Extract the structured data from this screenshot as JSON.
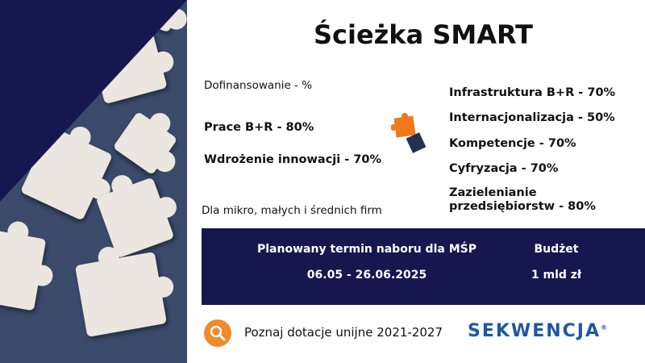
{
  "title": "Ścieżka SMART",
  "funding_label": "Dofinansowanie - %",
  "left_items": [
    "Prace B+R - 80%",
    "Wdrożenie innowacji - 70%"
  ],
  "right_items": [
    "Infrastruktura B+R - 70%",
    "Internacjonalizacja - 50%",
    "Kompetencje - 70%",
    "Cyfryzacja - 70%",
    "Zazielenianie",
    "przedsiębiorstw - 80%"
  ],
  "audience": "Dla mikro, małych i średnich firm",
  "band": {
    "term_label": "Planowany termin naboru dla MŚP",
    "term_value": "06.05 - 26.06.2025",
    "budget_label": "Budżet",
    "budget_value": "1 mld zł"
  },
  "footer": {
    "link": "Poznaj dotacje unijne 2021-2027",
    "logo": "SEKWENCJA",
    "logo_mark": "®",
    "icon": "search-icon"
  },
  "colors": {
    "navy": "#16174f",
    "orange": "#f08a2a",
    "logo_blue": "#1f56a6"
  }
}
